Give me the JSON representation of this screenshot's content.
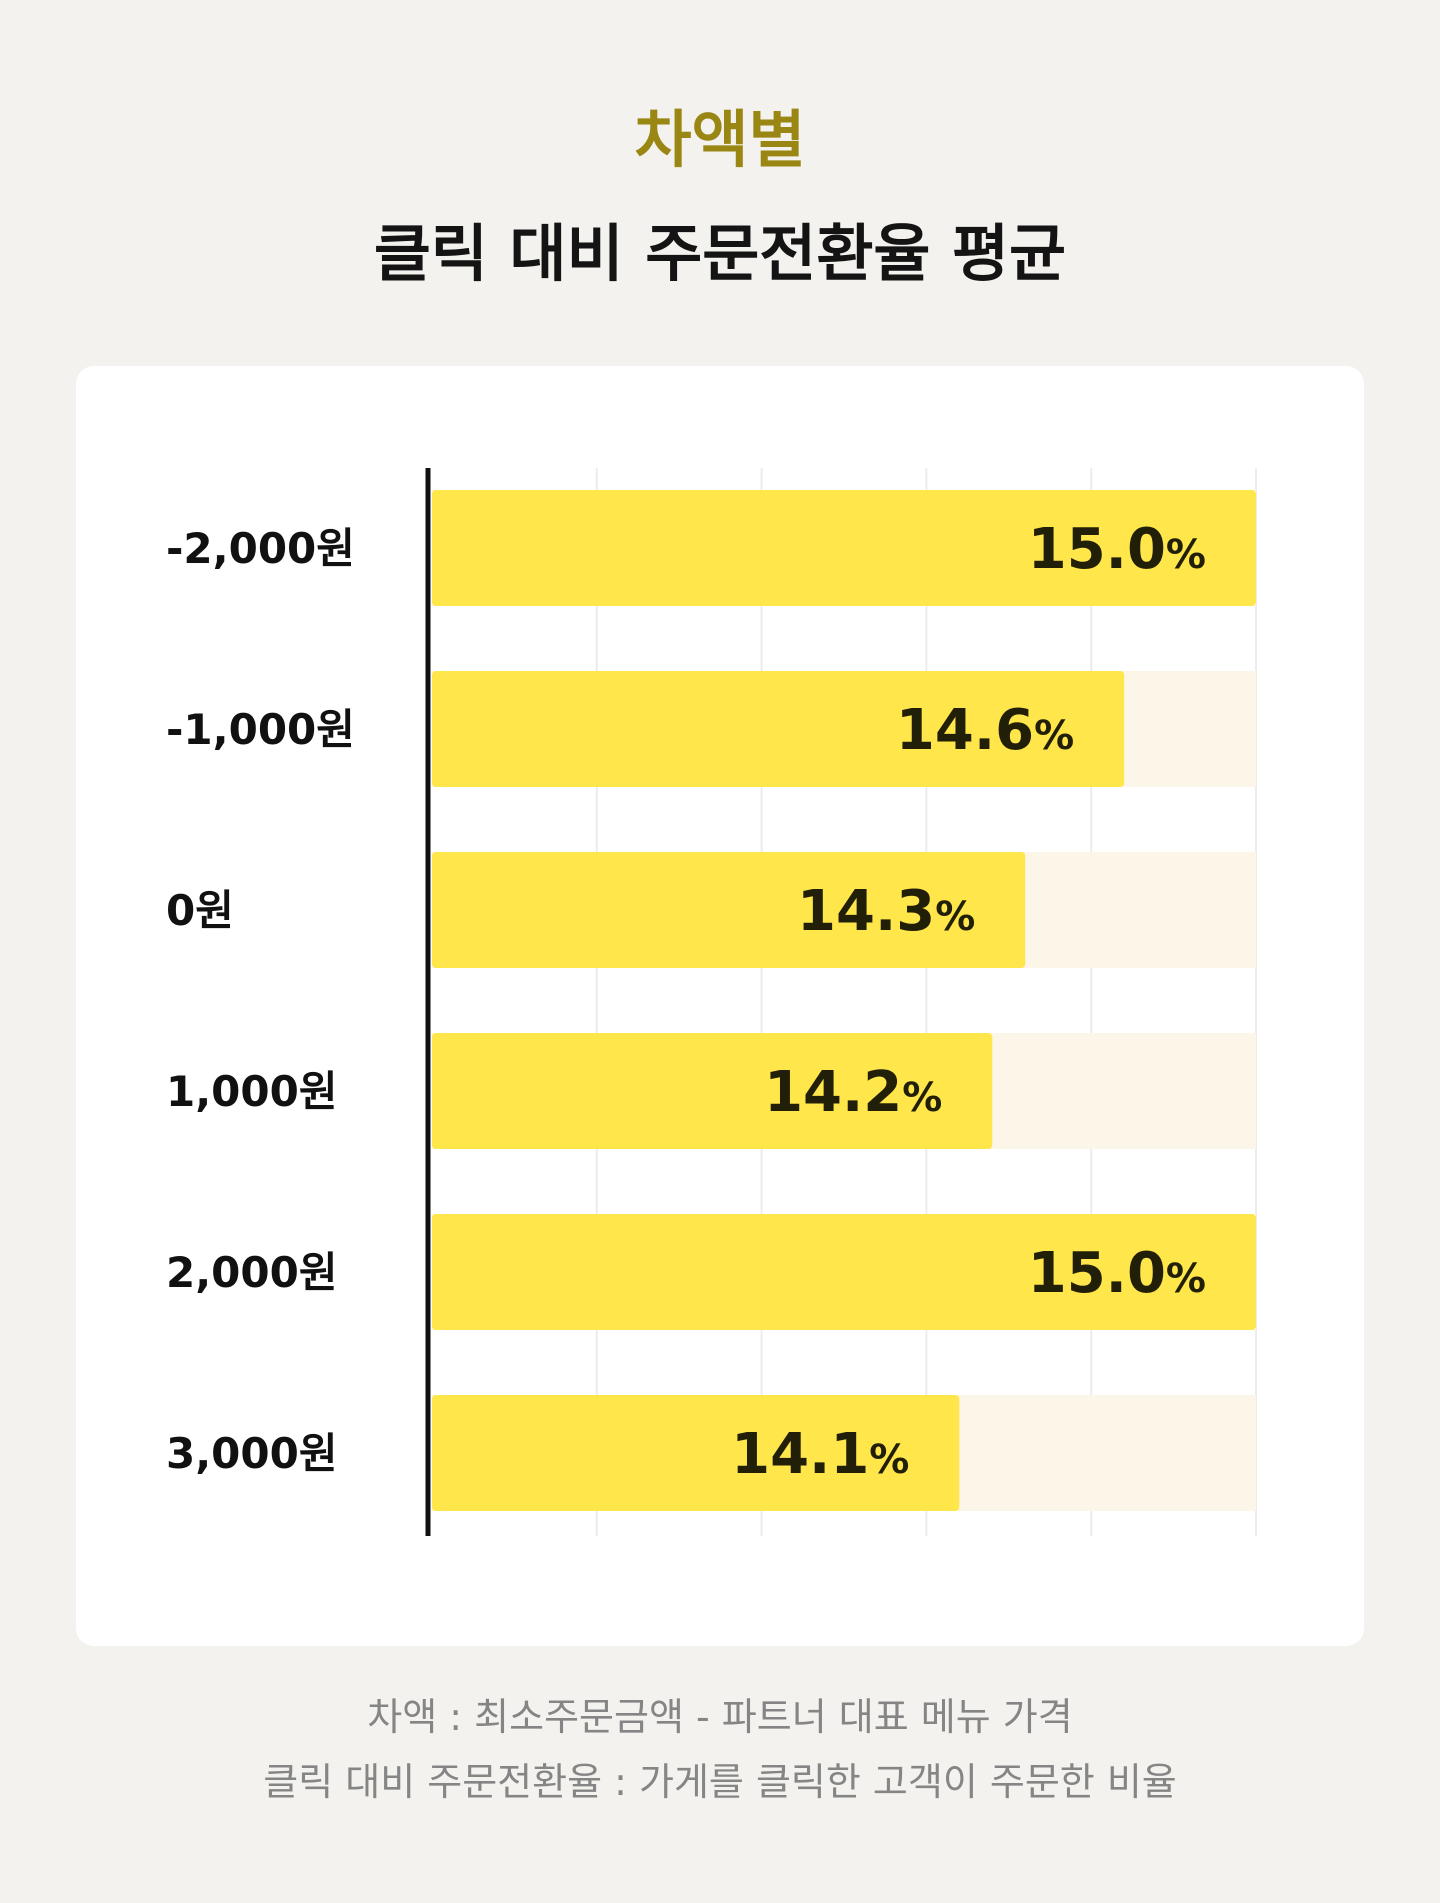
{
  "header": {
    "subtitle": "차액별",
    "title": "클릭 대비 주문전환율 평균"
  },
  "chart_data": {
    "type": "bar",
    "orientation": "horizontal",
    "title": "클릭 대비 주문전환율 평균",
    "subtitle": "차액별",
    "categories": [
      "-2,000원",
      "-1,000원",
      "0원",
      "1,000원",
      "2,000원",
      "3,000원"
    ],
    "values": [
      15.0,
      14.6,
      14.3,
      14.2,
      15.0,
      14.1
    ],
    "value_labels": [
      "15.0",
      "14.6",
      "14.3",
      "14.2",
      "15.0",
      "14.1"
    ],
    "unit": "%",
    "xlim": [
      12.5,
      15.0
    ],
    "grid": true,
    "colors": {
      "bar": "#ffe64a",
      "track": "#fcf6e8",
      "grid": "#ececec",
      "axis": "#111111",
      "accent_title": "#9a8612",
      "background": "#f3f2ef",
      "card": "#ffffff"
    }
  },
  "footer": {
    "note1": "차액 : 최소주문금액 - 파트너 대표 메뉴 가격",
    "note2": "클릭 대비 주문전환율 : 가게를 클릭한 고객이 주문한 비율"
  }
}
